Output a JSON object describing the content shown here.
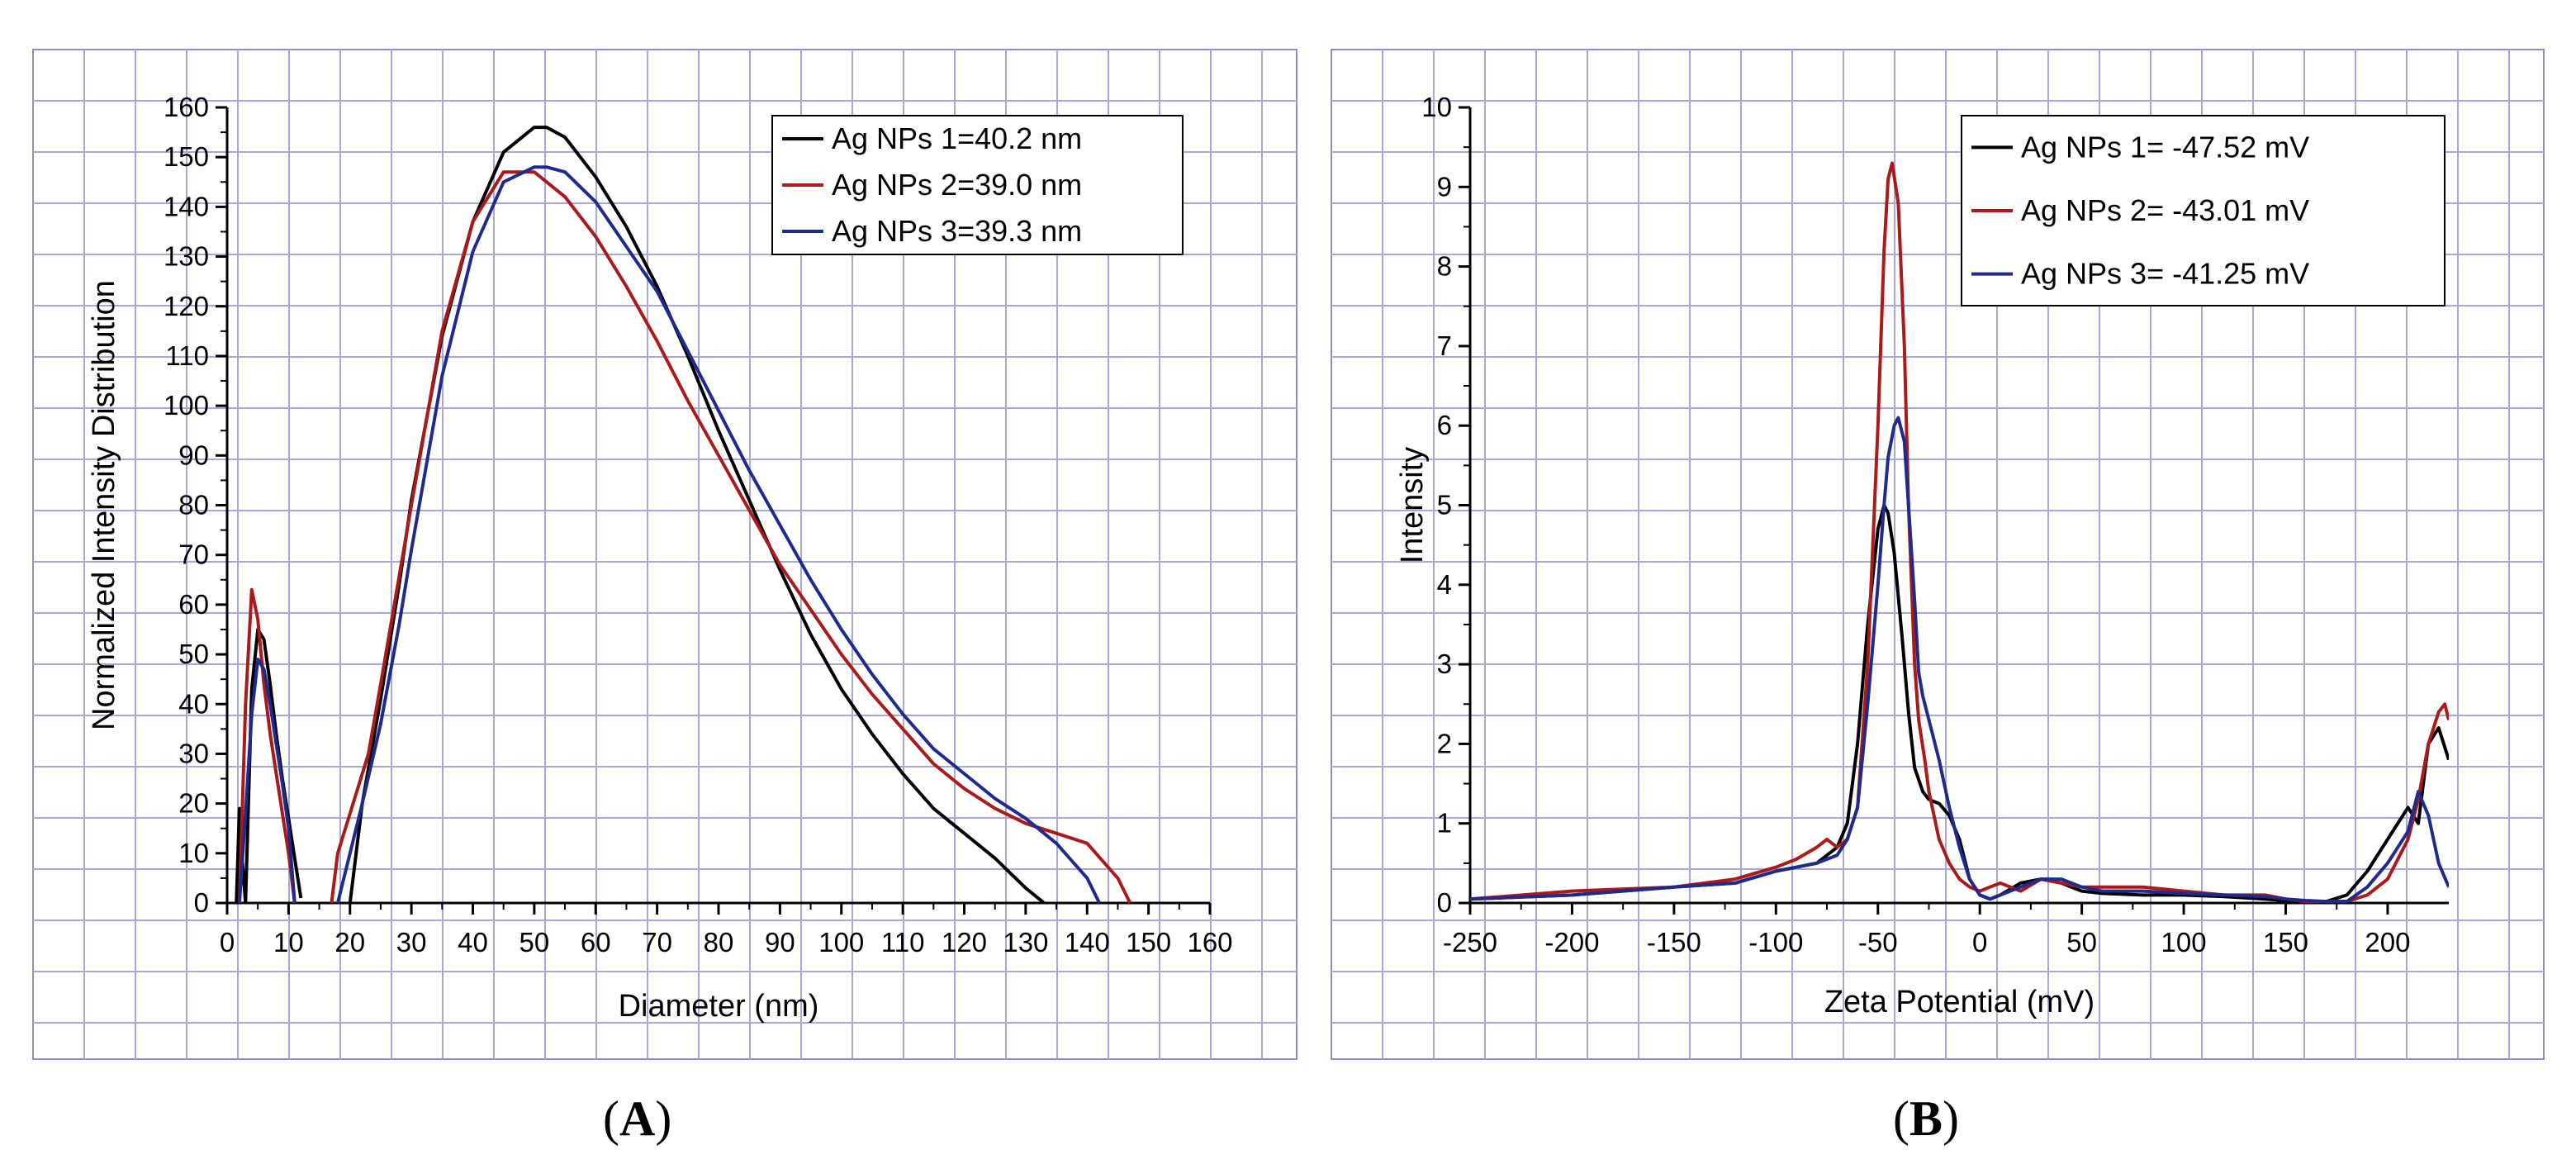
{
  "chart_data": [
    {
      "type": "line",
      "panel_label": "A",
      "xlabel": "Diameter (nm)",
      "ylabel": "Normalized Intensity Distribution",
      "xlim": [
        0,
        160
      ],
      "ylim": [
        0,
        160
      ],
      "xticks": [
        0,
        10,
        20,
        30,
        40,
        50,
        60,
        70,
        80,
        90,
        100,
        110,
        120,
        130,
        140,
        150,
        160
      ],
      "yticks": [
        0,
        10,
        20,
        30,
        40,
        50,
        60,
        70,
        80,
        90,
        100,
        110,
        120,
        130,
        140,
        150,
        160
      ],
      "grid": true,
      "legend_position": "top-right",
      "series": [
        {
          "name": "Ag NPs 1=40.2 nm",
          "color": "#000000",
          "x": [
            1.5,
            2,
            2.5,
            3,
            4,
            5,
            6,
            7,
            8,
            9,
            10,
            11,
            12,
            null,
            20,
            22,
            25,
            28,
            30,
            35,
            40,
            45,
            50,
            52,
            55,
            60,
            65,
            70,
            75,
            80,
            85,
            90,
            95,
            100,
            105,
            110,
            115,
            120,
            125,
            130,
            133
          ],
          "y": [
            0,
            19,
            8,
            0,
            43,
            55,
            53,
            44,
            34,
            25,
            17,
            9,
            1,
            null,
            0,
            20,
            41,
            64,
            81,
            114,
            137,
            151,
            156,
            156,
            154,
            146,
            136,
            124,
            110,
            95,
            81,
            67,
            54,
            43,
            34,
            26,
            19,
            14,
            9,
            3,
            0
          ]
        },
        {
          "name": "Ag NPs 2=39.0 nm",
          "color": "#aa1a1a",
          "x": [
            2,
            3,
            4,
            5,
            6,
            7,
            8,
            9,
            10,
            11,
            null,
            17,
            18,
            20,
            23,
            25,
            30,
            35,
            40,
            45,
            50,
            55,
            60,
            65,
            70,
            75,
            80,
            85,
            90,
            95,
            100,
            105,
            110,
            115,
            120,
            125,
            130,
            135,
            140,
            145,
            147
          ],
          "y": [
            0,
            40,
            63,
            57,
            44,
            34,
            26,
            18,
            10,
            0,
            null,
            0,
            10,
            18,
            30,
            44,
            80,
            115,
            137,
            147,
            147,
            142,
            134,
            124,
            113,
            101,
            90,
            79,
            68,
            59,
            50,
            42,
            35,
            28,
            23,
            19,
            16,
            14,
            12,
            5,
            0
          ]
        },
        {
          "name": "Ag NPs 3=39.3 nm",
          "color": "#1f2b8c",
          "x": [
            2,
            3,
            4,
            5,
            6,
            7,
            8,
            9,
            10,
            11,
            null,
            18,
            20,
            22,
            25,
            28,
            30,
            35,
            40,
            45,
            50,
            52,
            55,
            60,
            65,
            70,
            75,
            80,
            85,
            90,
            95,
            100,
            105,
            110,
            115,
            120,
            125,
            130,
            135,
            140,
            142
          ],
          "y": [
            0,
            18,
            38,
            49,
            47,
            40,
            32,
            24,
            15,
            0,
            null,
            0,
            10,
            20,
            36,
            56,
            71,
            106,
            131,
            145,
            148,
            148,
            147,
            141,
            132,
            123,
            111,
            99,
            87,
            76,
            65,
            55,
            46,
            38,
            31,
            26,
            21,
            17,
            12,
            5,
            0
          ]
        }
      ]
    },
    {
      "type": "line",
      "panel_label": "B",
      "xlabel": "Zeta Potential (mV)",
      "ylabel": "Intensity",
      "xlim": [
        -250,
        230
      ],
      "ylim": [
        0,
        10
      ],
      "xticks": [
        -250,
        -200,
        -150,
        -100,
        -50,
        0,
        50,
        100,
        150,
        200
      ],
      "yticks": [
        0,
        1,
        2,
        3,
        4,
        5,
        6,
        7,
        8,
        9,
        10
      ],
      "grid": true,
      "legend_position": "top-right",
      "series": [
        {
          "name": "Ag NPs 1= -47.52 mV",
          "color": "#000000",
          "x": [
            -250,
            -200,
            -150,
            -120,
            -100,
            -90,
            -80,
            -70,
            -65,
            -60,
            -55,
            -50,
            -47,
            -45,
            -42,
            -38,
            -35,
            -32,
            -28,
            -25,
            -20,
            -15,
            -10,
            -5,
            0,
            5,
            10,
            20,
            30,
            40,
            50,
            60,
            80,
            100,
            120,
            140,
            150,
            160,
            170,
            180,
            190,
            200,
            210,
            215,
            220,
            225,
            230
          ],
          "y": [
            0.05,
            0.1,
            0.2,
            0.25,
            0.4,
            0.45,
            0.5,
            0.7,
            1.0,
            2.0,
            3.5,
            4.7,
            5.0,
            4.9,
            4.4,
            3.3,
            2.4,
            1.7,
            1.4,
            1.3,
            1.25,
            1.1,
            0.8,
            0.3,
            0.1,
            0.05,
            0.1,
            0.25,
            0.3,
            0.25,
            0.15,
            0.12,
            0.1,
            0.1,
            0.08,
            0.05,
            0.03,
            0.02,
            0.02,
            0.1,
            0.4,
            0.8,
            1.2,
            1.0,
            2.0,
            2.2,
            1.8
          ]
        },
        {
          "name": "Ag NPs 2= -43.01 mV",
          "color": "#aa1a1a",
          "x": [
            -250,
            -200,
            -150,
            -120,
            -100,
            -90,
            -80,
            -75,
            -70,
            -65,
            -60,
            -55,
            -50,
            -47,
            -45,
            -43,
            -40,
            -37,
            -35,
            -32,
            -30,
            -27,
            -25,
            -20,
            -15,
            -10,
            -5,
            0,
            5,
            10,
            20,
            30,
            40,
            50,
            60,
            80,
            100,
            120,
            140,
            150,
            160,
            170,
            180,
            190,
            200,
            210,
            215,
            220,
            225,
            228,
            230
          ],
          "y": [
            0.05,
            0.15,
            0.2,
            0.3,
            0.45,
            0.55,
            0.7,
            0.8,
            0.7,
            0.8,
            1.2,
            3.0,
            6.0,
            8.2,
            9.1,
            9.3,
            8.8,
            7.0,
            5.0,
            3.0,
            2.3,
            1.8,
            1.4,
            0.8,
            0.5,
            0.3,
            0.2,
            0.15,
            0.2,
            0.25,
            0.15,
            0.3,
            0.25,
            0.2,
            0.2,
            0.2,
            0.15,
            0.1,
            0.1,
            0.05,
            0.02,
            0.02,
            0.02,
            0.1,
            0.3,
            0.8,
            1.3,
            2.0,
            2.4,
            2.5,
            2.3
          ]
        },
        {
          "name": "Ag NPs 3= -41.25 mV",
          "color": "#1f2b8c",
          "x": [
            -250,
            -200,
            -150,
            -120,
            -100,
            -90,
            -80,
            -75,
            -70,
            -65,
            -60,
            -55,
            -50,
            -47,
            -45,
            -42,
            -40,
            -37,
            -35,
            -32,
            -30,
            -28,
            -25,
            -20,
            -15,
            -10,
            -5,
            0,
            5,
            10,
            20,
            30,
            40,
            50,
            60,
            80,
            100,
            120,
            140,
            150,
            160,
            170,
            180,
            190,
            200,
            205,
            210,
            215,
            220,
            225,
            230
          ],
          "y": [
            0.05,
            0.1,
            0.2,
            0.25,
            0.4,
            0.45,
            0.5,
            0.55,
            0.6,
            0.8,
            1.2,
            2.5,
            4.0,
            5.0,
            5.6,
            6.0,
            6.1,
            5.8,
            5.0,
            3.8,
            2.9,
            2.6,
            2.3,
            1.8,
            1.2,
            0.7,
            0.3,
            0.1,
            0.05,
            0.1,
            0.2,
            0.3,
            0.3,
            0.2,
            0.15,
            0.15,
            0.12,
            0.1,
            0.08,
            0.05,
            0.03,
            0.02,
            0.02,
            0.2,
            0.5,
            0.7,
            0.9,
            1.4,
            1.1,
            0.5,
            0.2
          ]
        }
      ]
    }
  ]
}
